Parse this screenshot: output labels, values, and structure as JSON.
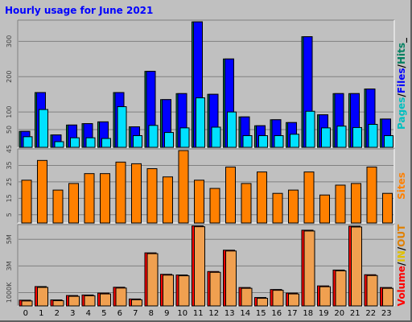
{
  "chart_data": [
    {
      "type": "bar",
      "panel": "pages-files-hits",
      "title": "Hourly usage for June 2021",
      "categories": [
        "0",
        "1",
        "2",
        "3",
        "4",
        "5",
        "6",
        "7",
        "8",
        "9",
        "10",
        "11",
        "12",
        "13",
        "14",
        "15",
        "16",
        "17",
        "18",
        "19",
        "20",
        "21",
        "22",
        "23"
      ],
      "ylim": [
        0,
        360
      ],
      "ytick_labels": [
        "50",
        "100",
        "200",
        "300"
      ],
      "ytick_values": [
        50,
        100,
        200,
        300
      ],
      "series": [
        {
          "name": "Hits",
          "color": "#00805c",
          "values": [
            45,
            155,
            35,
            63,
            67,
            72,
            155,
            58,
            215,
            135,
            152,
            355,
            150,
            250,
            86,
            61,
            78,
            70,
            313,
            92,
            152,
            152,
            165,
            80
          ]
        },
        {
          "name": "Files",
          "color": "#0000ff",
          "values": [
            45,
            155,
            35,
            63,
            67,
            72,
            155,
            58,
            215,
            135,
            152,
            355,
            150,
            250,
            86,
            61,
            78,
            70,
            313,
            92,
            152,
            152,
            165,
            80
          ]
        },
        {
          "name": "Pages",
          "color": "#00e0ff",
          "values": [
            30,
            107,
            16,
            27,
            27,
            25,
            115,
            33,
            62,
            42,
            55,
            140,
            57,
            100,
            33,
            33,
            33,
            37,
            102,
            55,
            60,
            56,
            65,
            33
          ]
        }
      ],
      "right_label": [
        "Pages",
        "/",
        "Files",
        "/",
        "Hits",
        "_"
      ]
    },
    {
      "type": "bar",
      "panel": "sites",
      "categories": [
        "0",
        "1",
        "2",
        "3",
        "4",
        "5",
        "6",
        "7",
        "8",
        "9",
        "10",
        "11",
        "12",
        "13",
        "14",
        "15",
        "16",
        "17",
        "18",
        "19",
        "20",
        "21",
        "22",
        "23"
      ],
      "ylim": [
        0,
        45
      ],
      "ytick_labels": [
        "5",
        "15",
        "25",
        "35",
        "45"
      ],
      "ytick_values": [
        5,
        15,
        25,
        35,
        45
      ],
      "series": [
        {
          "name": "Sites",
          "color": "#ff8000",
          "values": [
            26,
            38,
            20,
            24,
            30,
            30,
            37,
            36,
            33,
            28,
            44,
            26,
            21,
            34,
            24,
            31,
            18,
            20,
            31,
            17,
            23,
            24,
            34,
            18
          ]
        }
      ],
      "right_label": [
        "Sites"
      ]
    },
    {
      "type": "bar",
      "panel": "volume",
      "categories": [
        "0",
        "1",
        "2",
        "3",
        "4",
        "5",
        "6",
        "7",
        "8",
        "9",
        "10",
        "11",
        "12",
        "13",
        "14",
        "15",
        "16",
        "17",
        "18",
        "19",
        "20",
        "21",
        "22",
        "23"
      ],
      "ylim": [
        0,
        6100
      ],
      "ytick_labels": [
        "1000K",
        "3M",
        "5M"
      ],
      "ytick_values": [
        1000,
        3000,
        5000
      ],
      "series": [
        {
          "name": "Volume",
          "color": "#ff0000",
          "values": [
            430,
            1450,
            450,
            780,
            820,
            960,
            1400,
            520,
            3980,
            2370,
            2320,
            6000,
            2580,
            4180,
            1380,
            630,
            1230,
            960,
            5680,
            1500,
            2690,
            5980,
            2340,
            1380
          ]
        },
        {
          "name": "IN",
          "color": "#f0a050",
          "values": [
            430,
            1450,
            450,
            780,
            820,
            960,
            1400,
            520,
            3980,
            2370,
            2320,
            6000,
            2580,
            4180,
            1380,
            630,
            1230,
            960,
            5680,
            1500,
            2690,
            5980,
            2340,
            1380
          ]
        }
      ],
      "right_label": [
        "Volume",
        "/",
        "IN",
        "/",
        "OUT"
      ]
    }
  ],
  "colors": {
    "background": "#c0c0c0",
    "title": "#0000ff",
    "frame_border": "#606060",
    "grid": "#808080"
  }
}
